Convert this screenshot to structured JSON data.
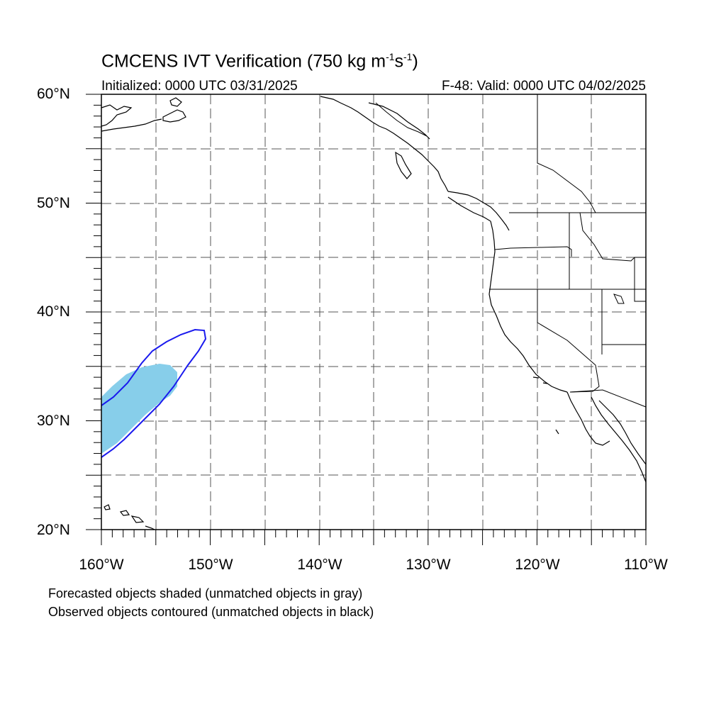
{
  "header": {
    "title_main": "CMCENS IVT Verification (750 kg m",
    "title_exp1": "-1",
    "title_mid": "s",
    "title_exp2": "-1",
    "title_end": ")",
    "initialized": "Initialized: 0000 UTC 03/31/2025",
    "valid": "F-48: Valid: 0000 UTC 04/02/2025"
  },
  "map": {
    "lat_labels": [
      "60°N",
      "50°N",
      "40°N",
      "30°N",
      "20°N"
    ],
    "lon_labels": [
      "160°W",
      "150°W",
      "140°W",
      "130°W",
      "120°W",
      "110°W"
    ],
    "extent": {
      "lon_min": -160,
      "lon_max": -110,
      "lat_min": 20,
      "lat_max": 60
    },
    "forecast_color": "#87ceea",
    "observed_color": "#1a1aee"
  },
  "footer": {
    "line1": "Forecasted objects shaded (unmatched objects in gray)",
    "line2": "Observed objects contoured (unmatched objects in black)"
  }
}
